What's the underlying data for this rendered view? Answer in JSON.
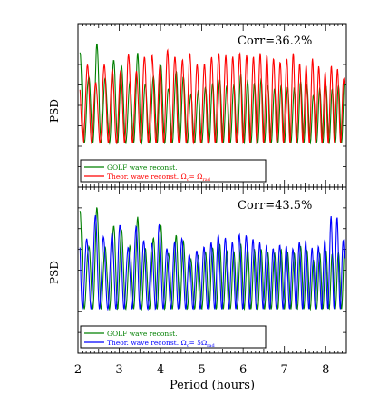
{
  "chart_data": [
    {
      "type": "line",
      "panel": "top",
      "xlabel": "",
      "ylabel": "PSD",
      "xlim": [
        2,
        8.5
      ],
      "annotation": "Corr=36.2%",
      "legend_position": "bottom-left",
      "series": [
        {
          "name": "GOLF wave reconst.",
          "color": "#008000",
          "x": [
            2.05,
            2.25,
            2.45,
            2.7,
            2.95,
            3.2,
            3.45,
            3.7,
            3.95,
            4.2,
            4.45,
            4.7,
            4.95,
            5.2,
            5.45,
            5.7,
            5.95,
            6.2,
            6.45,
            6.7,
            6.95,
            7.2,
            7.45,
            7.7,
            7.95,
            8.2,
            8.45
          ],
          "y": [
            0.85,
            0.6,
            0.95,
            0.55,
            0.9,
            0.5,
            0.85,
            0.45,
            0.8,
            0.5,
            0.75,
            0.45,
            0.5,
            0.55,
            0.6,
            0.5,
            0.65,
            0.55,
            0.6,
            0.5,
            0.55,
            0.5,
            0.6,
            0.45,
            0.55,
            0.5,
            0.6
          ]
        },
        {
          "name": "Theor. wave reconst. Ω_c= Ω_rad",
          "color": "#ff0000",
          "x": [
            2.05,
            2.25,
            2.45,
            2.7,
            2.95,
            3.2,
            3.45,
            3.7,
            3.95,
            4.2,
            4.45,
            4.7,
            4.95,
            5.2,
            5.45,
            5.7,
            5.95,
            6.2,
            6.45,
            6.7,
            6.95,
            7.2,
            7.45,
            7.7,
            7.95,
            8.2,
            8.45
          ],
          "y": [
            0.6,
            0.75,
            0.55,
            0.8,
            0.6,
            0.85,
            0.65,
            0.9,
            0.7,
            0.9,
            0.75,
            0.85,
            0.7,
            0.8,
            0.85,
            0.8,
            0.85,
            0.8,
            0.85,
            0.8,
            0.75,
            0.85,
            0.7,
            0.8,
            0.65,
            0.75,
            0.6
          ]
        }
      ]
    },
    {
      "type": "line",
      "panel": "bottom",
      "xlabel": "Period (hours)",
      "ylabel": "PSD",
      "xlim": [
        2,
        8.5
      ],
      "annotation": "Corr=43.5%",
      "legend_position": "bottom-left",
      "series": [
        {
          "name": "GOLF wave reconst.",
          "color": "#008000",
          "x": [
            2.05,
            2.25,
            2.45,
            2.7,
            2.95,
            3.2,
            3.45,
            3.7,
            3.95,
            4.2,
            4.45,
            4.7,
            4.95,
            5.2,
            5.45,
            5.7,
            5.95,
            6.2,
            6.45,
            6.7,
            6.95,
            7.2,
            7.45,
            7.7,
            7.95,
            8.2,
            8.45
          ],
          "y": [
            0.9,
            0.55,
            0.95,
            0.5,
            0.9,
            0.5,
            0.85,
            0.45,
            0.85,
            0.5,
            0.75,
            0.45,
            0.5,
            0.55,
            0.6,
            0.5,
            0.6,
            0.55,
            0.55,
            0.5,
            0.55,
            0.5,
            0.6,
            0.45,
            0.55,
            0.5,
            0.55
          ]
        },
        {
          "name": "Theor. wave reconst. Ω_c= 5Ω_rad",
          "color": "#0000ff",
          "x": [
            2.05,
            2.25,
            2.45,
            2.7,
            2.95,
            3.2,
            3.45,
            3.7,
            3.95,
            4.2,
            4.45,
            4.7,
            4.95,
            5.2,
            5.45,
            5.7,
            5.95,
            6.2,
            6.45,
            6.7,
            6.95,
            7.2,
            7.45,
            7.7,
            7.95,
            8.2,
            8.45
          ],
          "y": [
            0.85,
            0.6,
            0.9,
            0.55,
            0.85,
            0.55,
            0.8,
            0.5,
            0.8,
            0.5,
            0.7,
            0.5,
            0.55,
            0.6,
            0.7,
            0.6,
            0.7,
            0.65,
            0.6,
            0.55,
            0.6,
            0.55,
            0.65,
            0.55,
            0.6,
            0.95,
            0.6
          ]
        }
      ]
    }
  ],
  "axis": {
    "xticks": [
      "2",
      "3",
      "4",
      "5",
      "6",
      "7",
      "8"
    ]
  },
  "legend_top": {
    "line1": "GOLF wave reconst.",
    "line2": "Theor. wave reconst. Ω",
    "line2_sub": "c",
    "line2_mid": "= Ω",
    "line2_sub2": "rad"
  },
  "legend_bottom": {
    "line1": "GOLF wave reconst.",
    "line2": "Theor. wave reconst. Ω",
    "line2_sub": "c",
    "line2_mid": "= 5Ω",
    "line2_sub2": "rad"
  },
  "colors": {
    "golf": "#008000",
    "theory_top": "#ff0000",
    "theory_bottom": "#0000ff"
  }
}
